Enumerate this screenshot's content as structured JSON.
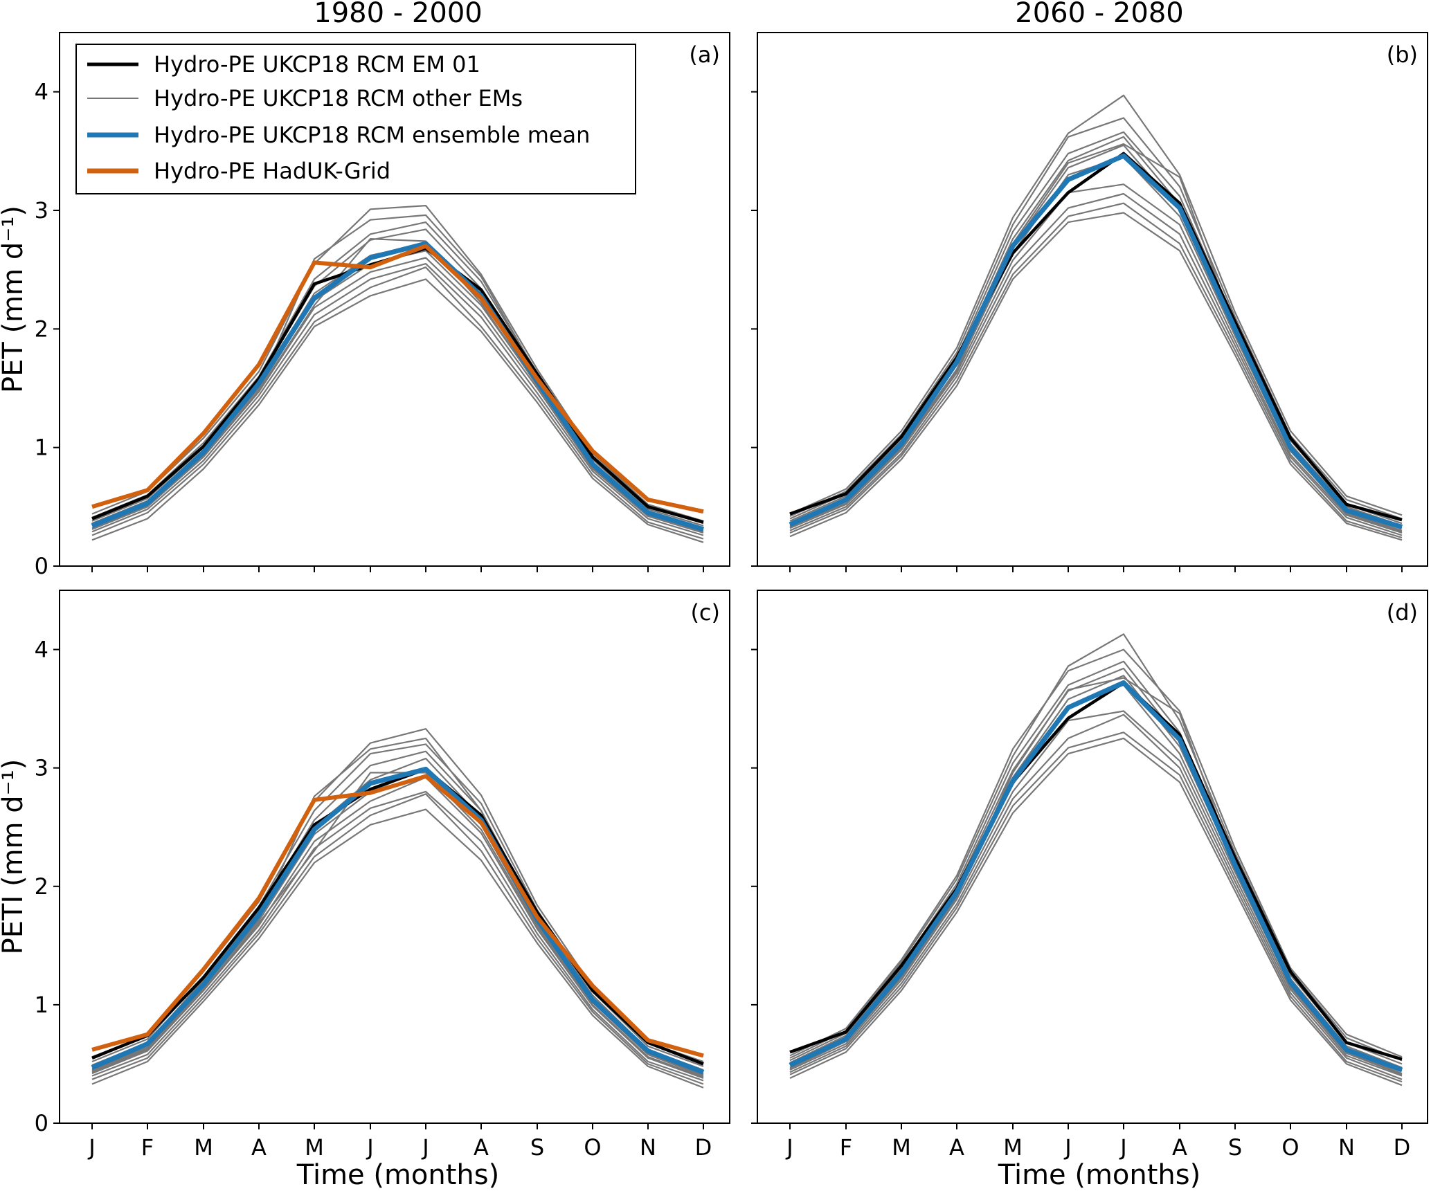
{
  "figure": {
    "col_titles": [
      "1980 - 2000",
      "2060 - 2080"
    ],
    "x_axis_label": "Time (months)"
  },
  "legend": {
    "items": [
      {
        "label": "Hydro-PE UKCP18 RCM EM 01",
        "style": "em01"
      },
      {
        "label": "Hydro-PE UKCP18 RCM other EMs",
        "style": "other"
      },
      {
        "label": "Hydro-PE UKCP18 RCM ensemble mean",
        "style": "mean"
      },
      {
        "label": "Hydro-PE HadUK-Grid",
        "style": "haduk"
      }
    ]
  },
  "colors": {
    "em01": "#000000",
    "other": "#777777",
    "mean": "#1f77b4",
    "haduk": "#d1610f"
  },
  "chart_data": [
    {
      "type": "line",
      "panel_label": "(a)",
      "title": "1980 - 2000",
      "ylabel": "PET (mm d⁻¹)",
      "xlabel": "",
      "categories": [
        "J",
        "F",
        "M",
        "A",
        "M",
        "J",
        "J",
        "A",
        "S",
        "O",
        "N",
        "D"
      ],
      "ylim": [
        0,
        4.5
      ],
      "yticks": [
        0,
        1,
        2,
        3,
        4
      ],
      "other_ems": [
        [
          0.22,
          0.4,
          0.82,
          1.36,
          2.02,
          2.28,
          2.42,
          1.98,
          1.38,
          0.74,
          0.35,
          0.2
        ],
        [
          0.26,
          0.45,
          0.86,
          1.4,
          2.06,
          2.35,
          2.52,
          2.02,
          1.42,
          0.77,
          0.37,
          0.23
        ],
        [
          0.29,
          0.48,
          0.89,
          1.44,
          2.12,
          2.42,
          2.55,
          2.1,
          1.46,
          0.8,
          0.4,
          0.26
        ],
        [
          0.31,
          0.5,
          0.92,
          1.47,
          2.18,
          2.48,
          2.6,
          2.15,
          1.5,
          0.82,
          0.42,
          0.28
        ],
        [
          0.34,
          0.53,
          0.95,
          1.5,
          2.24,
          2.55,
          2.66,
          2.2,
          1.53,
          0.85,
          0.44,
          0.3
        ],
        [
          0.36,
          0.55,
          0.98,
          1.54,
          2.3,
          2.62,
          2.72,
          2.26,
          1.56,
          0.87,
          0.46,
          0.32
        ],
        [
          0.38,
          0.57,
          1.0,
          1.57,
          2.36,
          2.75,
          2.84,
          2.34,
          1.6,
          0.9,
          0.48,
          0.34
        ],
        [
          0.41,
          0.6,
          1.04,
          1.6,
          2.42,
          2.8,
          2.9,
          2.4,
          1.63,
          0.92,
          0.5,
          0.36
        ],
        [
          0.44,
          0.63,
          1.08,
          1.64,
          2.55,
          3.01,
          3.04,
          2.46,
          1.66,
          0.95,
          0.52,
          0.38
        ],
        [
          0.36,
          0.54,
          0.97,
          1.52,
          2.59,
          2.92,
          2.96,
          2.44,
          1.62,
          0.86,
          0.45,
          0.31
        ],
        [
          0.32,
          0.51,
          0.93,
          1.48,
          2.2,
          2.76,
          2.74,
          2.22,
          1.52,
          0.83,
          0.43,
          0.29
        ]
      ],
      "em01": [
        0.4,
        0.59,
        1.01,
        1.58,
        2.38,
        2.54,
        2.68,
        2.33,
        1.62,
        0.92,
        0.5,
        0.37
      ],
      "mean": [
        0.34,
        0.53,
        0.96,
        1.54,
        2.26,
        2.6,
        2.72,
        2.28,
        1.56,
        0.86,
        0.45,
        0.31
      ],
      "haduk": [
        0.5,
        0.64,
        1.12,
        1.7,
        2.56,
        2.52,
        2.7,
        2.26,
        1.58,
        0.97,
        0.56,
        0.46
      ]
    },
    {
      "type": "line",
      "panel_label": "(b)",
      "title": "2060 - 2080",
      "ylabel": "",
      "xlabel": "",
      "categories": [
        "J",
        "F",
        "M",
        "A",
        "M",
        "J",
        "J",
        "A",
        "S",
        "O",
        "N",
        "D"
      ],
      "ylim": [
        0,
        4.5
      ],
      "yticks": [
        0,
        1,
        2,
        3,
        4
      ],
      "other_ems": [
        [
          0.25,
          0.45,
          0.9,
          1.52,
          2.42,
          2.9,
          2.98,
          2.66,
          1.78,
          0.86,
          0.36,
          0.22
        ],
        [
          0.28,
          0.48,
          0.93,
          1.56,
          2.46,
          2.95,
          3.06,
          2.72,
          1.82,
          0.89,
          0.38,
          0.24
        ],
        [
          0.3,
          0.5,
          0.95,
          1.6,
          2.52,
          3.02,
          3.14,
          2.8,
          1.86,
          0.92,
          0.41,
          0.26
        ],
        [
          0.32,
          0.52,
          0.98,
          1.63,
          2.58,
          3.15,
          3.22,
          2.88,
          1.9,
          0.94,
          0.43,
          0.28
        ],
        [
          0.34,
          0.55,
          1.0,
          1.66,
          2.64,
          3.3,
          3.45,
          2.95,
          1.94,
          0.97,
          0.45,
          0.3
        ],
        [
          0.36,
          0.57,
          1.03,
          1.7,
          2.7,
          3.36,
          3.55,
          3.0,
          1.98,
          1.0,
          0.47,
          0.32
        ],
        [
          0.38,
          0.59,
          1.06,
          1.73,
          2.76,
          3.42,
          3.62,
          3.05,
          2.02,
          1.03,
          0.5,
          0.34
        ],
        [
          0.4,
          0.61,
          1.08,
          1.76,
          2.82,
          3.48,
          3.66,
          3.12,
          2.06,
          1.06,
          0.52,
          0.36
        ],
        [
          0.42,
          0.63,
          1.11,
          1.8,
          2.88,
          3.62,
          3.78,
          3.2,
          2.1,
          1.1,
          0.56,
          0.4
        ],
        [
          0.44,
          0.65,
          1.14,
          1.84,
          2.94,
          3.65,
          3.97,
          3.3,
          2.14,
          1.14,
          0.59,
          0.43
        ],
        [
          0.33,
          0.53,
          0.99,
          1.64,
          2.72,
          3.4,
          3.56,
          3.28,
          2.0,
          0.98,
          0.44,
          0.29
        ]
      ],
      "em01": [
        0.44,
        0.61,
        1.09,
        1.76,
        2.64,
        3.15,
        3.48,
        3.06,
        2.06,
        1.08,
        0.52,
        0.39
      ],
      "mean": [
        0.35,
        0.56,
        1.03,
        1.72,
        2.7,
        3.26,
        3.46,
        3.02,
        2.0,
        1.0,
        0.47,
        0.33
      ],
      "haduk": null
    },
    {
      "type": "line",
      "panel_label": "(c)",
      "title": "",
      "ylabel": "PETI (mm d⁻¹)",
      "xlabel": "Time (months)",
      "categories": [
        "J",
        "F",
        "M",
        "A",
        "M",
        "J",
        "J",
        "A",
        "S",
        "O",
        "N",
        "D"
      ],
      "ylim": [
        0,
        4.5
      ],
      "yticks": [
        0,
        1,
        2,
        3,
        4
      ],
      "other_ems": [
        [
          0.33,
          0.52,
          1.03,
          1.56,
          2.2,
          2.52,
          2.65,
          2.22,
          1.52,
          0.91,
          0.48,
          0.3
        ],
        [
          0.37,
          0.55,
          1.06,
          1.6,
          2.25,
          2.6,
          2.78,
          2.3,
          1.56,
          0.94,
          0.5,
          0.33
        ],
        [
          0.4,
          0.58,
          1.09,
          1.63,
          2.32,
          2.66,
          2.8,
          2.38,
          1.6,
          0.96,
          0.52,
          0.36
        ],
        [
          0.42,
          0.61,
          1.12,
          1.67,
          2.38,
          2.72,
          2.92,
          2.45,
          1.64,
          0.99,
          0.55,
          0.38
        ],
        [
          0.44,
          0.63,
          1.15,
          1.71,
          2.44,
          2.8,
          3.0,
          2.52,
          1.68,
          1.02,
          0.58,
          0.4
        ],
        [
          0.46,
          0.66,
          1.18,
          1.75,
          2.5,
          2.9,
          3.08,
          2.58,
          1.72,
          1.05,
          0.6,
          0.42
        ],
        [
          0.49,
          0.68,
          1.21,
          1.79,
          2.56,
          3.02,
          3.14,
          2.64,
          1.76,
          1.08,
          0.62,
          0.45
        ],
        [
          0.52,
          0.71,
          1.24,
          1.83,
          2.64,
          3.12,
          3.2,
          2.7,
          1.8,
          1.11,
          0.65,
          0.48
        ],
        [
          0.56,
          0.74,
          1.28,
          1.87,
          2.72,
          3.21,
          3.33,
          2.77,
          1.84,
          1.15,
          0.68,
          0.52
        ],
        [
          0.45,
          0.64,
          1.16,
          1.72,
          2.76,
          3.16,
          3.25,
          2.64,
          1.74,
          1.04,
          0.59,
          0.41
        ],
        [
          0.43,
          0.62,
          1.13,
          1.69,
          2.3,
          2.96,
          2.96,
          2.48,
          1.66,
          1.0,
          0.56,
          0.39
        ]
      ],
      "em01": [
        0.55,
        0.74,
        1.23,
        1.82,
        2.52,
        2.82,
        2.99,
        2.6,
        1.78,
        1.12,
        0.68,
        0.5
      ],
      "mean": [
        0.47,
        0.67,
        1.17,
        1.76,
        2.48,
        2.87,
        2.99,
        2.56,
        1.72,
        1.04,
        0.61,
        0.43
      ],
      "haduk": [
        0.62,
        0.75,
        1.3,
        1.9,
        2.73,
        2.79,
        2.93,
        2.54,
        1.74,
        1.16,
        0.7,
        0.57
      ]
    },
    {
      "type": "line",
      "panel_label": "(d)",
      "title": "",
      "ylabel": "",
      "xlabel": "Time (months)",
      "categories": [
        "J",
        "F",
        "M",
        "A",
        "M",
        "J",
        "J",
        "A",
        "S",
        "O",
        "N",
        "D"
      ],
      "ylim": [
        0,
        4.5
      ],
      "yticks": [
        0,
        1,
        2,
        3,
        4
      ],
      "other_ems": [
        [
          0.38,
          0.6,
          1.12,
          1.78,
          2.62,
          3.12,
          3.25,
          2.88,
          1.96,
          1.04,
          0.5,
          0.32
        ],
        [
          0.41,
          0.63,
          1.15,
          1.82,
          2.68,
          3.17,
          3.3,
          2.94,
          2.0,
          1.07,
          0.52,
          0.35
        ],
        [
          0.43,
          0.65,
          1.18,
          1.85,
          2.74,
          3.25,
          3.45,
          3.0,
          2.04,
          1.1,
          0.55,
          0.37
        ],
        [
          0.45,
          0.67,
          1.21,
          1.89,
          2.8,
          3.4,
          3.48,
          3.06,
          2.08,
          1.13,
          0.57,
          0.4
        ],
        [
          0.47,
          0.7,
          1.24,
          1.92,
          2.86,
          3.52,
          3.7,
          3.12,
          2.12,
          1.16,
          0.6,
          0.42
        ],
        [
          0.49,
          0.72,
          1.27,
          1.95,
          2.92,
          3.58,
          3.78,
          3.18,
          2.16,
          1.19,
          0.62,
          0.44
        ],
        [
          0.51,
          0.74,
          1.3,
          1.99,
          2.98,
          3.65,
          3.84,
          3.24,
          2.2,
          1.22,
          0.65,
          0.47
        ],
        [
          0.53,
          0.76,
          1.33,
          2.02,
          3.04,
          3.7,
          3.9,
          3.3,
          2.24,
          1.25,
          0.68,
          0.5
        ],
        [
          0.55,
          0.78,
          1.36,
          2.06,
          3.1,
          3.86,
          4.13,
          3.4,
          2.28,
          1.29,
          0.72,
          0.53
        ],
        [
          0.57,
          0.8,
          1.38,
          2.09,
          3.16,
          3.82,
          4.0,
          3.48,
          2.32,
          1.31,
          0.75,
          0.56
        ],
        [
          0.46,
          0.69,
          1.23,
          1.91,
          2.96,
          3.66,
          3.76,
          3.46,
          2.18,
          1.15,
          0.59,
          0.41
        ]
      ],
      "em01": [
        0.6,
        0.77,
        1.33,
        1.98,
        2.88,
        3.42,
        3.72,
        3.28,
        2.24,
        1.28,
        0.68,
        0.54
      ],
      "mean": [
        0.49,
        0.71,
        1.27,
        1.95,
        2.89,
        3.51,
        3.72,
        3.24,
        2.18,
        1.19,
        0.62,
        0.45
      ],
      "haduk": null
    }
  ]
}
